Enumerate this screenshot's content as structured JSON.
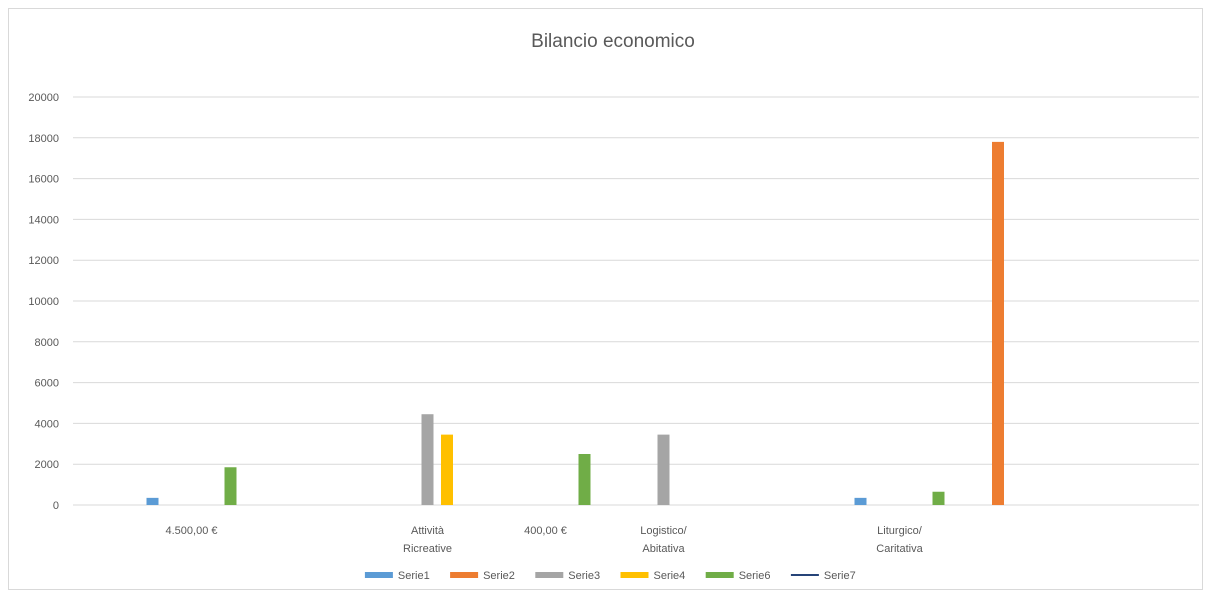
{
  "chart_data": {
    "type": "bar",
    "title": "Bilancio economico",
    "xlabel": "",
    "ylabel": "",
    "ylim": [
      0,
      20000
    ],
    "yticks": [
      0,
      2000,
      4000,
      6000,
      8000,
      10000,
      12000,
      14000,
      16000,
      18000,
      20000
    ],
    "grid": true,
    "legend_position": "bottom",
    "categories": [
      [
        "4.500,00 €"
      ],
      [],
      [
        "Attività",
        "Ricreative"
      ],
      [
        "400,00 €"
      ],
      [
        "Logistico/",
        "Abitativa"
      ],
      [],
      [
        "Liturgico/",
        "Caritativa"
      ],
      [],
      []
    ],
    "series": [
      {
        "name": "Serie1",
        "color": "#5b9bd5",
        "type": "bar",
        "values": [
          350,
          null,
          null,
          null,
          null,
          null,
          350,
          null,
          null
        ]
      },
      {
        "name": "Serie2",
        "color": "#ed7d31",
        "type": "bar",
        "values": [
          null,
          null,
          null,
          null,
          null,
          null,
          null,
          17800,
          null
        ]
      },
      {
        "name": "Serie3",
        "color": "#a5a5a5",
        "type": "bar",
        "values": [
          null,
          null,
          4450,
          null,
          3450,
          null,
          null,
          null,
          null
        ]
      },
      {
        "name": "Serie4",
        "color": "#ffc000",
        "type": "bar",
        "values": [
          null,
          null,
          3450,
          null,
          null,
          null,
          null,
          null,
          null
        ]
      },
      {
        "name": "Serie6",
        "color": "#70ad47",
        "type": "bar",
        "values": [
          1850,
          null,
          null,
          2500,
          null,
          null,
          650,
          null,
          null
        ]
      },
      {
        "name": "Serie7",
        "color": "#264478",
        "type": "line",
        "values": [
          null,
          null,
          null,
          null,
          null,
          null,
          null,
          null,
          null
        ]
      }
    ]
  }
}
